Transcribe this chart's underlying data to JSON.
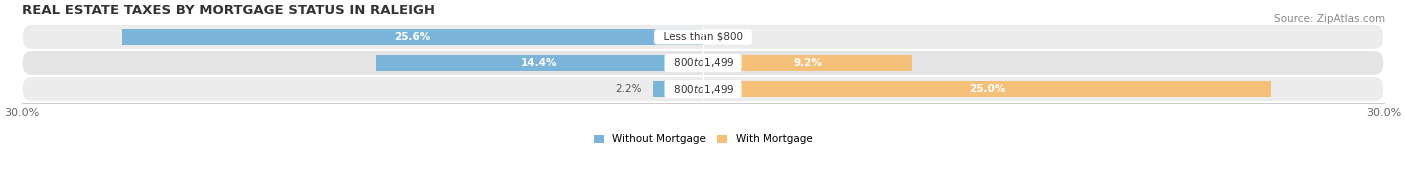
{
  "title": "REAL ESTATE TAXES BY MORTGAGE STATUS IN RALEIGH",
  "source": "Source: ZipAtlas.com",
  "rows": [
    {
      "label": "Less than $800",
      "without_mortgage": 25.6,
      "with_mortgage": 0.0
    },
    {
      "label": "$800 to $1,499",
      "without_mortgage": 14.4,
      "with_mortgage": 9.2
    },
    {
      "label": "$800 to $1,499",
      "without_mortgage": 2.2,
      "with_mortgage": 25.0
    }
  ],
  "xlim": [
    -30.0,
    30.0
  ],
  "xticks": [
    -30.0,
    30.0
  ],
  "xticklabels": [
    "30.0%",
    "30.0%"
  ],
  "color_without": "#7ab4d8",
  "color_with": "#f5c07a",
  "bar_height": 0.62,
  "row_bg_colors": [
    "#ececec",
    "#e4e4e4",
    "#ececec"
  ],
  "title_fontsize": 9.5,
  "source_fontsize": 7.5,
  "label_fontsize": 7.5,
  "tick_fontsize": 8,
  "inside_label_threshold": 5.0
}
